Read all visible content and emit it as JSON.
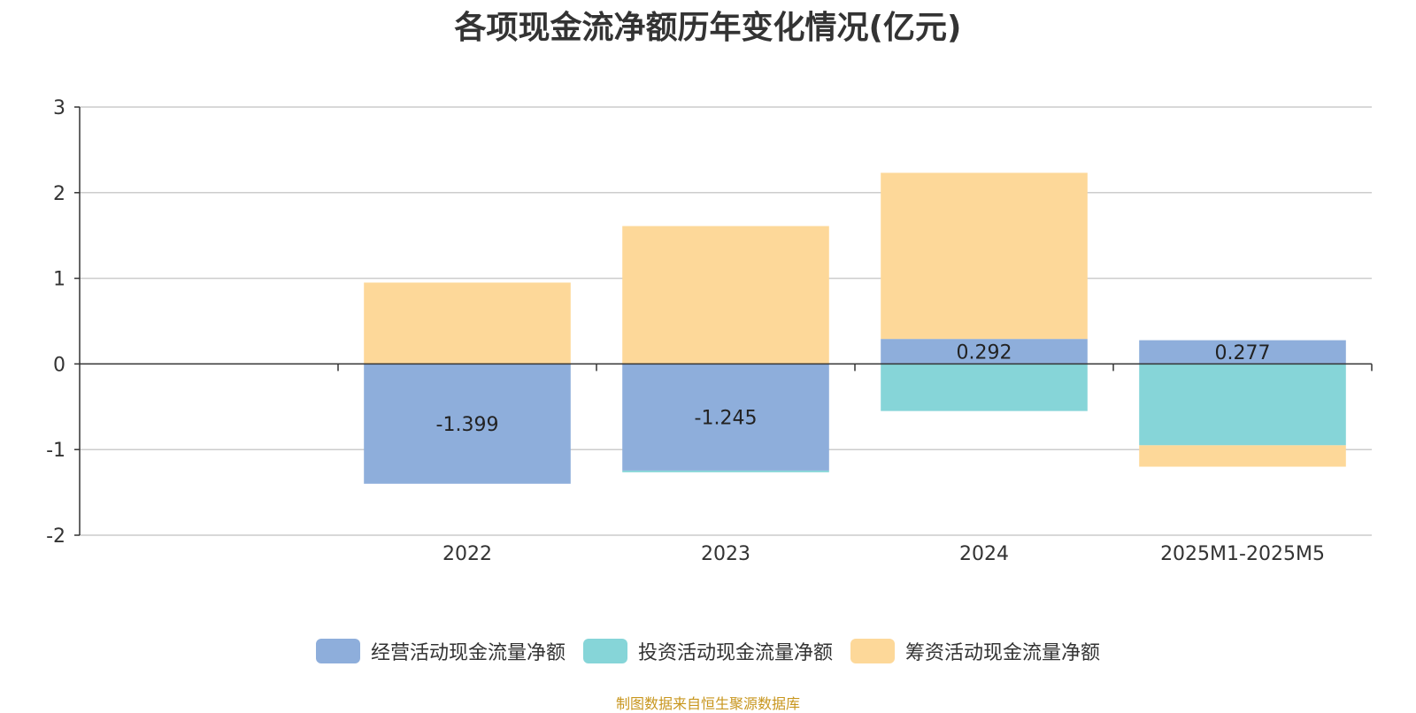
{
  "chart_data": {
    "type": "bar",
    "stacked": true,
    "title": "各项现金流净额历年变化情况(亿元)",
    "categories": [
      "",
      "2022",
      "2023",
      "2024",
      "2025M1-2025M5"
    ],
    "ylim": [
      -2,
      3
    ],
    "yticks": [
      3,
      2,
      1,
      0,
      -1,
      -2
    ],
    "grid": true,
    "legend_position": "bottom",
    "series": [
      {
        "name": "经营活动现金流量净额",
        "color": "#8eaedb",
        "values": [
          null,
          -1.399,
          -1.245,
          0.292,
          0.277
        ],
        "labels": [
          "",
          "-1.399",
          "-1.245",
          "0.292",
          "0.277"
        ]
      },
      {
        "name": "投资活动现金流量净额",
        "color": "#86d5d8",
        "values": [
          null,
          0.0,
          -0.02,
          -0.55,
          -0.95
        ]
      },
      {
        "name": "筹资活动现金流量净额",
        "color": "#fdd899",
        "values": [
          null,
          0.95,
          1.61,
          1.94,
          -0.25
        ]
      }
    ]
  },
  "source": "制图数据来自恒生聚源数据库"
}
